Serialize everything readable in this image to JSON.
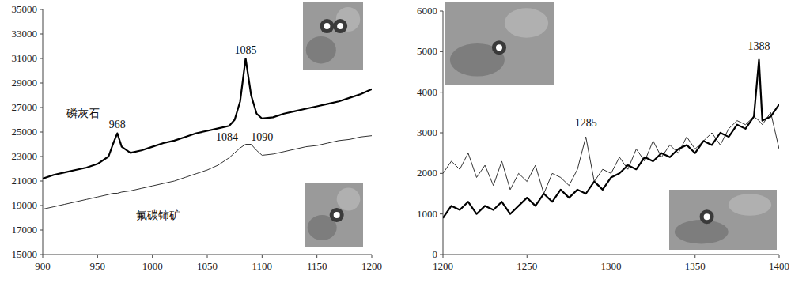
{
  "chart_data": [
    {
      "type": "line",
      "x": [
        900,
        910,
        920,
        930,
        940,
        950,
        960,
        964,
        968,
        972,
        980,
        990,
        1000,
        1010,
        1020,
        1030,
        1040,
        1050,
        1060,
        1070,
        1075,
        1080,
        1085,
        1090,
        1095,
        1100,
        1110,
        1120,
        1130,
        1140,
        1150,
        1160,
        1170,
        1180,
        1190,
        1200
      ],
      "series": [
        {
          "color": "#000000",
          "line_style": "bold",
          "values": [
            21200,
            21500,
            21700,
            21900,
            22100,
            22400,
            23000,
            24000,
            24900,
            23800,
            23300,
            23500,
            23800,
            24100,
            24300,
            24600,
            24900,
            25100,
            25300,
            25500,
            26000,
            27500,
            31000,
            28000,
            26500,
            26100,
            26200,
            26500,
            26700,
            26900,
            27100,
            27300,
            27500,
            27800,
            28100,
            28500
          ]
        },
        {
          "color": "#333333",
          "line_style": "thin",
          "values": [
            18700,
            18900,
            19100,
            19300,
            19500,
            19700,
            19900,
            20000,
            20000,
            20100,
            20200,
            20400,
            20600,
            20800,
            21000,
            21300,
            21600,
            21900,
            22300,
            22900,
            23300,
            23700,
            24000,
            24000,
            23500,
            23100,
            23200,
            23400,
            23600,
            23800,
            23900,
            24100,
            24300,
            24400,
            24600,
            24700
          ]
        }
      ],
      "xlim": [
        900,
        1200
      ],
      "xticks": [
        900,
        950,
        1000,
        1050,
        1100,
        1150,
        1200
      ],
      "ylim": [
        15000,
        35000
      ],
      "yticks": [
        15000,
        17000,
        19000,
        21000,
        23000,
        25000,
        27000,
        29000,
        31000,
        33000,
        35000
      ],
      "grid": false,
      "annotations": [
        {
          "text": "968",
          "x": 968,
          "y": 25300
        },
        {
          "text": "1085",
          "x": 1085,
          "y": 31400
        },
        {
          "text": "磷灰石",
          "x": 937,
          "y": 26200
        },
        {
          "text": "1084",
          "x": 1068,
          "y": 24300
        },
        {
          "text": "1090",
          "x": 1100,
          "y": 24300
        },
        {
          "text": "氟碳铈矿",
          "x": 1005,
          "y": 17900
        }
      ]
    },
    {
      "type": "line",
      "x": [
        1200,
        1205,
        1210,
        1215,
        1220,
        1225,
        1230,
        1235,
        1240,
        1245,
        1250,
        1255,
        1260,
        1265,
        1270,
        1275,
        1280,
        1285,
        1290,
        1295,
        1300,
        1305,
        1310,
        1315,
        1320,
        1325,
        1330,
        1335,
        1340,
        1345,
        1350,
        1355,
        1360,
        1365,
        1370,
        1375,
        1380,
        1385,
        1388,
        1390,
        1395,
        1400
      ],
      "series": [
        {
          "color": "#333333",
          "line_style": "thin",
          "values": [
            2000,
            2300,
            2100,
            2500,
            1900,
            2200,
            1700,
            2300,
            1600,
            2000,
            1800,
            2200,
            1500,
            2000,
            1900,
            1700,
            2100,
            2900,
            1800,
            2100,
            2000,
            2400,
            2100,
            2600,
            2300,
            2800,
            2400,
            2700,
            2500,
            2900,
            2600,
            2800,
            3000,
            2700,
            3100,
            3300,
            3200,
            3400,
            3300,
            3200,
            3500,
            2600
          ]
        },
        {
          "color": "#000000",
          "line_style": "bold",
          "values": [
            900,
            1200,
            1100,
            1300,
            1000,
            1200,
            1100,
            1300,
            1000,
            1200,
            1400,
            1200,
            1500,
            1300,
            1600,
            1400,
            1600,
            1500,
            1800,
            1600,
            1900,
            2000,
            2200,
            2100,
            2400,
            2300,
            2500,
            2400,
            2600,
            2700,
            2500,
            2800,
            2700,
            3000,
            2900,
            3200,
            3100,
            3400,
            4800,
            3300,
            3400,
            3700
          ]
        }
      ],
      "xlim": [
        1200,
        1400
      ],
      "xticks": [
        1200,
        1250,
        1300,
        1350,
        1400
      ],
      "ylim": [
        0,
        6000
      ],
      "yticks": [
        0,
        1000,
        2000,
        3000,
        4000,
        5000,
        6000
      ],
      "grid": false,
      "annotations": [
        {
          "text": "1285",
          "x": 1285,
          "y": 3150
        },
        {
          "text": "1388",
          "x": 1388,
          "y": 5050
        }
      ]
    }
  ]
}
